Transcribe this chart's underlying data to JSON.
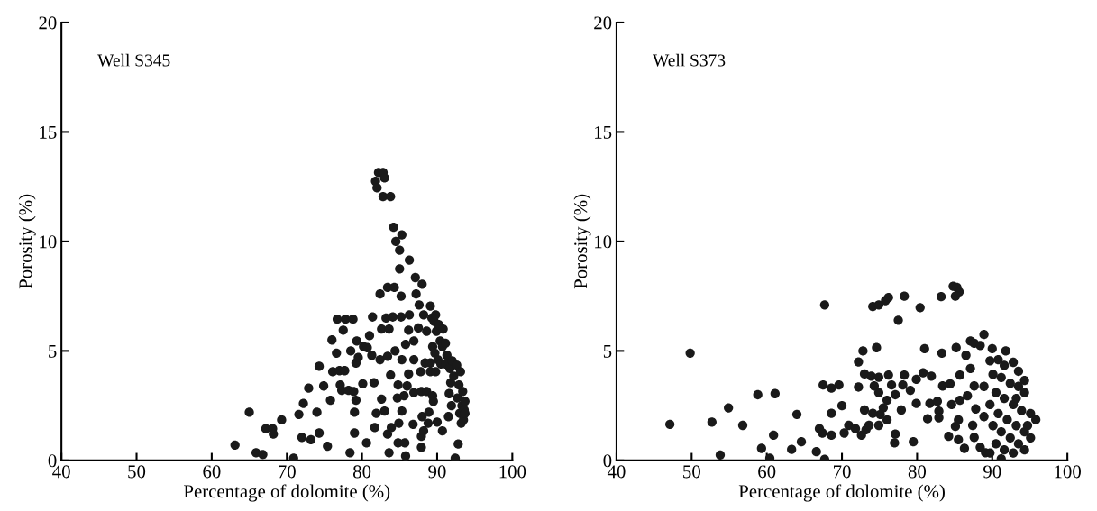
{
  "chart_data": [
    {
      "type": "scatter",
      "xlabel": "Percentage of dolomite (%)",
      "ylabel": "Porosity (%)",
      "annotations": [
        "Well S345"
      ],
      "xlim": [
        40,
        100
      ],
      "ylim": [
        0,
        20
      ],
      "xticks": [
        40,
        50,
        60,
        70,
        80,
        90,
        100
      ],
      "yticks": [
        0,
        5,
        10,
        15,
        20
      ],
      "marker": "circle",
      "series": [
        {
          "color": "#1a1a1a",
          "x": [
            63.1,
            65.0,
            65.9,
            66.8,
            67.2,
            68.1,
            68.2,
            69.3,
            70.9,
            71.6,
            72.0,
            72.2,
            72.9,
            73.2,
            74.0,
            74.3,
            74.3,
            74.9,
            75.4,
            75.8,
            76.0,
            76.1,
            76.6,
            76.7,
            77.0,
            77.1,
            77.3,
            77.5,
            77.7,
            77.8,
            78.2,
            78.4,
            78.5,
            78.8,
            78.9,
            79.0,
            79.0,
            79.2,
            79.2,
            79.3,
            79.5,
            80.1,
            80.2,
            80.6,
            80.7,
            81.0,
            81.3,
            81.4,
            81.6,
            81.7,
            81.9,
            81.8,
            82.0,
            82.2,
            82.4,
            82.4,
            82.6,
            82.6,
            82.8,
            83.0,
            82.8,
            83.0,
            83.2,
            83.4,
            83.4,
            83.4,
            83.6,
            83.6,
            83.8,
            83.8,
            83.9,
            84.1,
            84.2,
            84.3,
            84.4,
            84.5,
            84.7,
            84.8,
            84.8,
            84.9,
            85.0,
            85.0,
            85.2,
            85.2,
            85.3,
            85.3,
            85.3,
            85.6,
            85.7,
            85.8,
            85.8,
            86.0,
            86.2,
            86.2,
            86.3,
            86.3,
            86.8,
            86.9,
            86.9,
            87.1,
            86.9,
            87.2,
            87.5,
            87.6,
            87.8,
            87.9,
            87.9,
            87.9,
            88.0,
            88.0,
            88.2,
            88.2,
            88.4,
            88.6,
            88.6,
            88.8,
            88.9,
            89.1,
            89.1,
            89.1,
            89.3,
            89.4,
            89.4,
            89.5,
            89.6,
            89.7,
            89.8,
            89.8,
            89.9,
            90.0,
            90.1,
            90.2,
            90.4,
            90.5,
            90.7,
            90.7,
            90.8,
            91.1,
            91.1,
            91.3,
            91.5,
            91.6,
            91.7,
            91.8,
            91.9,
            92.0,
            92.2,
            92.4,
            92.6,
            92.7,
            92.8,
            92.9,
            93.0,
            93.1,
            93.2,
            93.3,
            93.4,
            93.5,
            93.6,
            93.7,
            93.7
          ],
          "values": [
            0.7,
            2.2,
            0.35,
            0.27,
            1.45,
            1.45,
            1.2,
            1.85,
            0.1,
            2.1,
            1.05,
            2.6,
            3.3,
            0.95,
            2.2,
            4.3,
            1.25,
            3.4,
            0.65,
            2.75,
            5.5,
            4.05,
            4.9,
            6.45,
            4.1,
            3.45,
            3.2,
            5.95,
            4.1,
            6.45,
            3.2,
            0.35,
            5.0,
            6.45,
            3.15,
            2.2,
            1.25,
            2.75,
            4.45,
            5.45,
            4.7,
            3.5,
            5.2,
            0.8,
            5.15,
            5.7,
            4.8,
            6.55,
            3.55,
            1.5,
            2.15,
            12.75,
            12.45,
            13.15,
            7.6,
            4.6,
            6.0,
            2.8,
            13.15,
            12.9,
            12.05,
            2.25,
            6.5,
            1.2,
            7.9,
            4.75,
            6.0,
            0.35,
            12.05,
            3.9,
            1.5,
            6.55,
            10.65,
            7.9,
            5.0,
            10.0,
            2.85,
            0.8,
            3.45,
            1.7,
            8.75,
            9.6,
            7.5,
            6.55,
            4.6,
            2.25,
            10.3,
            2.95,
            0.8,
            5.3,
            0.2,
            3.4,
            3.95,
            5.95,
            6.65,
            9.15,
            1.65,
            3.1,
            5.45,
            8.35,
            4.6,
            7.6,
            6.05,
            7.1,
            4.05,
            3.15,
            1.1,
            0.6,
            8.05,
            2.0,
            1.35,
            6.65,
            4.45,
            5.9,
            3.15,
            1.7,
            2.2,
            7.05,
            4.45,
            4.05,
            6.5,
            5.2,
            2.95,
            2.7,
            6.35,
            4.9,
            6.65,
            4.05,
            5.9,
            1.75,
            4.6,
            6.2,
            5.45,
            4.4,
            1.35,
            5.2,
            6.0,
            5.35,
            4.4,
            4.8,
            2.0,
            3.05,
            4.2,
            3.55,
            2.5,
            4.55,
            3.85,
            0.1,
            4.35,
            2.85,
            0.75,
            3.45,
            2.15,
            4.05,
            1.7,
            2.5,
            3.15,
            1.85,
            2.3,
            2.7,
            2.15
          ]
        }
      ]
    },
    {
      "type": "scatter",
      "xlabel": "Percentage of dolomite (%)",
      "ylabel": "Porosity (%)",
      "annotations": [
        "Well S373"
      ],
      "xlim": [
        40,
        100
      ],
      "ylim": [
        0,
        20
      ],
      "xticks": [
        40,
        50,
        60,
        70,
        80,
        90,
        100
      ],
      "yticks": [
        0,
        5,
        10,
        15,
        20
      ],
      "marker": "circle",
      "series": [
        {
          "color": "#1a1a1a",
          "x": [
            47.1,
            49.8,
            52.7,
            53.8,
            54.9,
            56.8,
            58.8,
            59.3,
            60.4,
            60.9,
            61.1,
            63.3,
            64.0,
            64.6,
            66.6,
            67.0,
            67.4,
            67.5,
            67.7,
            67.7,
            68.6,
            69.6,
            68.6,
            70.0,
            68.6,
            70.3,
            70.9,
            71.8,
            72.6,
            73.2,
            73.6,
            72.2,
            72.8,
            72.2,
            74.6,
            73.0,
            73.9,
            74.9,
            76.2,
            74.3,
            74.9,
            76.6,
            76.0,
            75.5,
            75.1,
            74.1,
            73.0,
            76.0,
            74.9,
            77.1,
            77.1,
            77.0,
            77.9,
            78.3,
            78.1,
            79.1,
            79.5,
            79.9,
            79.9,
            81.0,
            80.8,
            81.9,
            81.4,
            81.7,
            82.7,
            82.9,
            82.9,
            83.3,
            83.4,
            84.4,
            84.6,
            84.2,
            85.2,
            85.1,
            85.5,
            85.7,
            85.7,
            86.5,
            87.1,
            85.5,
            86.3,
            87.1,
            87.6,
            88.9,
            88.4,
            90.0,
            86.7,
            87.6,
            87.8,
            87.4,
            87.6,
            88.4,
            89.1,
            89.7,
            90.8,
            91.8,
            92.8,
            93.5,
            90.1,
            91.2,
            92.4,
            93.5,
            94.3,
            88.9,
            90.5,
            91.6,
            92.8,
            93.9,
            95.1,
            95.8,
            89.7,
            90.8,
            92.0,
            93.2,
            94.3,
            95.1,
            90.1,
            91.2,
            92.4,
            93.5,
            90.5,
            91.6,
            92.8,
            91.2,
            94.3,
            89.7,
            88.9,
            94.3,
            91.6,
            93.2,
            94.7,
            74.1,
            74.9,
            75.8,
            76.2,
            78.3,
            77.5,
            80.4,
            83.2,
            85.1,
            84.8,
            85.3,
            85.6
          ],
          "values": [
            1.65,
            4.9,
            1.75,
            0.25,
            2.4,
            1.6,
            3.0,
            0.55,
            0.1,
            1.15,
            3.05,
            0.5,
            2.1,
            0.85,
            0.4,
            1.45,
            1.25,
            3.45,
            7.1,
            0.05,
            3.3,
            3.45,
            2.15,
            2.5,
            1.15,
            1.25,
            1.6,
            1.45,
            1.15,
            1.4,
            1.6,
            3.35,
            5.0,
            4.5,
            5.15,
            3.95,
            3.85,
            3.8,
            3.9,
            3.4,
            3.1,
            3.45,
            2.75,
            2.4,
            2.1,
            2.15,
            2.3,
            1.85,
            1.6,
            3.0,
            1.2,
            0.8,
            2.3,
            3.9,
            3.45,
            3.2,
            0.85,
            2.6,
            3.7,
            5.1,
            4.0,
            3.85,
            1.9,
            2.6,
            2.7,
            2.25,
            1.95,
            4.9,
            3.4,
            3.5,
            2.55,
            1.1,
            5.15,
            1.55,
            1.85,
            3.9,
            2.75,
            4.8,
            4.2,
            0.95,
            0.55,
            5.45,
            5.35,
            5.75,
            5.25,
            5.1,
            2.95,
            3.4,
            2.35,
            1.6,
            1.05,
            0.6,
            0.35,
            4.55,
            4.6,
            5.0,
            4.48,
            4.07,
            3.93,
            3.79,
            3.52,
            3.38,
            3.1,
            3.38,
            3.1,
            2.83,
            2.55,
            2.27,
            2.14,
            1.86,
            2.55,
            2.14,
            1.86,
            1.59,
            1.31,
            1.03,
            1.59,
            1.31,
            1.03,
            0.76,
            0.76,
            0.48,
            0.34,
            0.07,
            0.48,
            0.34,
            2.0,
            3.65,
            4.34,
            2.83,
            1.59,
            7.03,
            7.1,
            7.3,
            7.44,
            7.5,
            6.4,
            6.98,
            7.48,
            7.5,
            7.95,
            7.9,
            7.7
          ]
        }
      ]
    }
  ]
}
